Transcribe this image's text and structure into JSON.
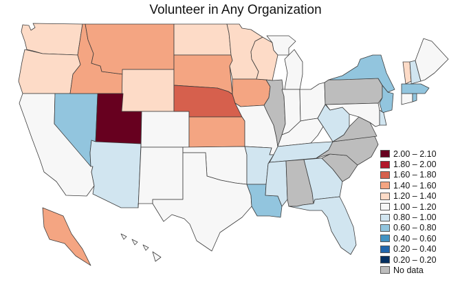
{
  "map": {
    "title": "Volunteer in Any Organization"
  },
  "legend": {
    "items": [
      {
        "label": "2.00 – 2.10",
        "color": "#67001f"
      },
      {
        "label": "1.80 – 2.00",
        "color": "#b2182b"
      },
      {
        "label": "1.60 – 1.80",
        "color": "#d6604d"
      },
      {
        "label": "1.40 – 1.60",
        "color": "#f4a582"
      },
      {
        "label": "1.20 – 1.40",
        "color": "#fddbc7"
      },
      {
        "label": "1.00 – 1.20",
        "color": "#f7f7f7"
      },
      {
        "label": "0.80 – 1.00",
        "color": "#d1e5f0"
      },
      {
        "label": "0.60 – 0.80",
        "color": "#92c5de"
      },
      {
        "label": "0.40 – 0.60",
        "color": "#4393c3"
      },
      {
        "label": "0.20 – 0.40",
        "color": "#2166ac"
      },
      {
        "label": "0.20 – 0.20",
        "color": "#053061"
      },
      {
        "label": "No data",
        "color": "#bdbdbd"
      }
    ]
  },
  "states": [
    {
      "name": "WA",
      "bin": "1.20 – 1.40"
    },
    {
      "name": "OR",
      "bin": "1.20 – 1.40"
    },
    {
      "name": "CA",
      "bin": "1.00 – 1.20"
    },
    {
      "name": "NV",
      "bin": "0.60 – 0.80"
    },
    {
      "name": "ID",
      "bin": "1.40 – 1.60"
    },
    {
      "name": "MT",
      "bin": "1.40 – 1.60"
    },
    {
      "name": "WY",
      "bin": "1.20 – 1.40"
    },
    {
      "name": "UT",
      "bin": "2.00 – 2.10"
    },
    {
      "name": "AZ",
      "bin": "0.80 – 1.00"
    },
    {
      "name": "CO",
      "bin": "1.00 – 1.20"
    },
    {
      "name": "NM",
      "bin": "1.00 – 1.20"
    },
    {
      "name": "ND",
      "bin": "1.20 – 1.40"
    },
    {
      "name": "SD",
      "bin": "1.40 – 1.60"
    },
    {
      "name": "NE",
      "bin": "1.60 – 1.80"
    },
    {
      "name": "KS",
      "bin": "1.40 – 1.60"
    },
    {
      "name": "OK",
      "bin": "1.00 – 1.20"
    },
    {
      "name": "TX",
      "bin": "1.00 – 1.20"
    },
    {
      "name": "MN",
      "bin": "1.20 – 1.40"
    },
    {
      "name": "IA",
      "bin": "1.40 – 1.60"
    },
    {
      "name": "MO",
      "bin": "1.00 – 1.20"
    },
    {
      "name": "AR",
      "bin": "0.80 – 1.00"
    },
    {
      "name": "LA",
      "bin": "0.60 – 0.80"
    },
    {
      "name": "WI",
      "bin": "1.20 – 1.40"
    },
    {
      "name": "IL",
      "bin": "No data"
    },
    {
      "name": "MI",
      "bin": "1.00 – 1.20"
    },
    {
      "name": "IN",
      "bin": "1.00 – 1.20"
    },
    {
      "name": "OH",
      "bin": "1.00 – 1.20"
    },
    {
      "name": "KY",
      "bin": "1.00 – 1.20"
    },
    {
      "name": "TN",
      "bin": "0.80 – 1.00"
    },
    {
      "name": "MS",
      "bin": "0.80 – 1.00"
    },
    {
      "name": "AL",
      "bin": "No data"
    },
    {
      "name": "GA",
      "bin": "0.80 – 1.00"
    },
    {
      "name": "FL",
      "bin": "0.80 – 1.00"
    },
    {
      "name": "SC",
      "bin": "No data"
    },
    {
      "name": "NC",
      "bin": "No data"
    },
    {
      "name": "VA",
      "bin": "No data"
    },
    {
      "name": "WV",
      "bin": "0.80 – 1.00"
    },
    {
      "name": "PA",
      "bin": "No data"
    },
    {
      "name": "NY",
      "bin": "0.60 – 0.80"
    },
    {
      "name": "NJ",
      "bin": "0.60 – 0.80"
    },
    {
      "name": "DE",
      "bin": "0.80 – 1.00"
    },
    {
      "name": "MD",
      "bin": "1.00 – 1.20"
    },
    {
      "name": "CT",
      "bin": "1.00 – 1.20"
    },
    {
      "name": "RI",
      "bin": "0.60 – 0.80"
    },
    {
      "name": "MA",
      "bin": "0.60 – 0.80"
    },
    {
      "name": "VT",
      "bin": "1.20 – 1.40"
    },
    {
      "name": "NH",
      "bin": "0.80 – 1.00"
    },
    {
      "name": "ME",
      "bin": "1.00 – 1.20"
    },
    {
      "name": "AK",
      "bin": "1.40 – 1.60"
    },
    {
      "name": "HI",
      "bin": "1.00 – 1.20"
    }
  ]
}
